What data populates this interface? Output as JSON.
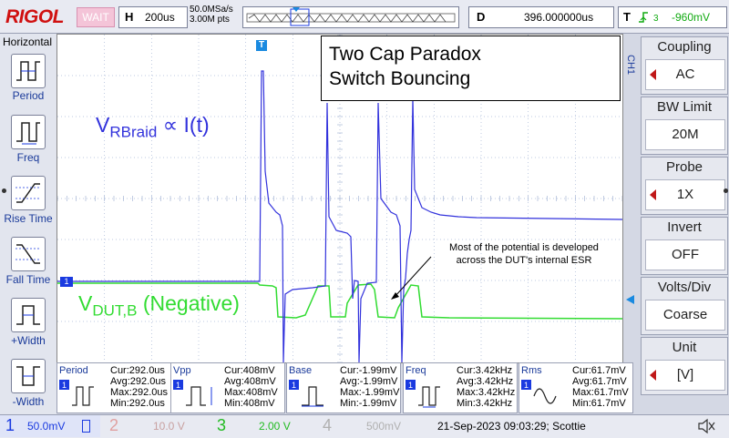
{
  "topbar": {
    "brand": "RIGOL",
    "status": "WAIT",
    "horizontal": {
      "key": "H",
      "value": "200us"
    },
    "sample_rate": "50.0MSa/s",
    "memory_depth": "3.00M pts",
    "delay": {
      "key": "D",
      "value": "396.000000us"
    },
    "trigger": {
      "key": "T",
      "value": "-960mV",
      "color": "#11aa11"
    }
  },
  "left_panel": {
    "title": "Horizontal",
    "items": [
      {
        "label": "Period",
        "icon": "period-icon"
      },
      {
        "label": "Freq",
        "icon": "freq-icon"
      },
      {
        "label": "Rise Time",
        "icon": "rise-time-icon"
      },
      {
        "label": "Fall Time",
        "icon": "fall-time-icon"
      },
      {
        "label": "+Width",
        "icon": "positive-width-icon"
      },
      {
        "label": "-Width",
        "icon": "negative-width-icon"
      }
    ]
  },
  "screen": {
    "trigger_marker": "T",
    "title_lines": [
      "Two Cap Paradox",
      "Switch Bouncing"
    ],
    "ch1_label": {
      "main": "V",
      "sub": "RBraid",
      "rest": " ∝ I(t)"
    },
    "ch2_label": {
      "main": "V",
      "sub": "DUT,B",
      "rest": " (Negative)"
    },
    "annotation_lines": [
      "Most of the potential is developed",
      "across the DUT's internal ESR"
    ],
    "ch1_ground_marker": "1",
    "colors": {
      "ch1": "#3232dc",
      "ch2": "#32dc32",
      "grid": "#a6b6d6"
    }
  },
  "right_panel": {
    "channel": "CH1",
    "items": [
      {
        "title": "Coupling",
        "value": "AC"
      },
      {
        "title": "BW Limit",
        "value": "20M"
      },
      {
        "title": "Probe",
        "value": "1X"
      },
      {
        "title": "Invert",
        "value": "OFF"
      },
      {
        "title": "Volts/Div",
        "value": "Coarse"
      },
      {
        "title": "Unit",
        "value": "[V]"
      }
    ]
  },
  "measurements": [
    {
      "name": "Period",
      "cur": "Cur:292.0us",
      "avg": "Avg:292.0us",
      "max": "Max:292.0us",
      "min": "Min:292.0us"
    },
    {
      "name": "Vpp",
      "cur": "Cur:408mV",
      "avg": "Avg:408mV",
      "max": "Max:408mV",
      "min": "Min:408mV"
    },
    {
      "name": "Base",
      "cur": "Cur:-1.99mV",
      "avg": "Avg:-1.99mV",
      "max": "Max:-1.99mV",
      "min": "Min:-1.99mV"
    },
    {
      "name": "Freq",
      "cur": "Cur:3.42kHz",
      "avg": "Avg:3.42kHz",
      "max": "Max:3.42kHz",
      "min": "Min:3.42kHz"
    },
    {
      "name": "Rms",
      "cur": "Cur:61.7mV",
      "avg": "Avg:61.7mV",
      "max": "Max:61.7mV",
      "min": "Min:61.7mV"
    }
  ],
  "bottombar": {
    "channels": [
      {
        "num": "1",
        "value": "50.0mV",
        "active": true,
        "color": "#1a3ae0"
      },
      {
        "num": "2",
        "value": "10.0 V",
        "active": false,
        "color": "#e0a0a0"
      },
      {
        "num": "3",
        "value": "2.00 V",
        "active": true,
        "color": "#22bb22"
      },
      {
        "num": "4",
        "value": "500mV",
        "active": false,
        "color": "#b0b0b0"
      }
    ],
    "datetime": "21-Sep-2023 09:03:29; Scottie"
  }
}
